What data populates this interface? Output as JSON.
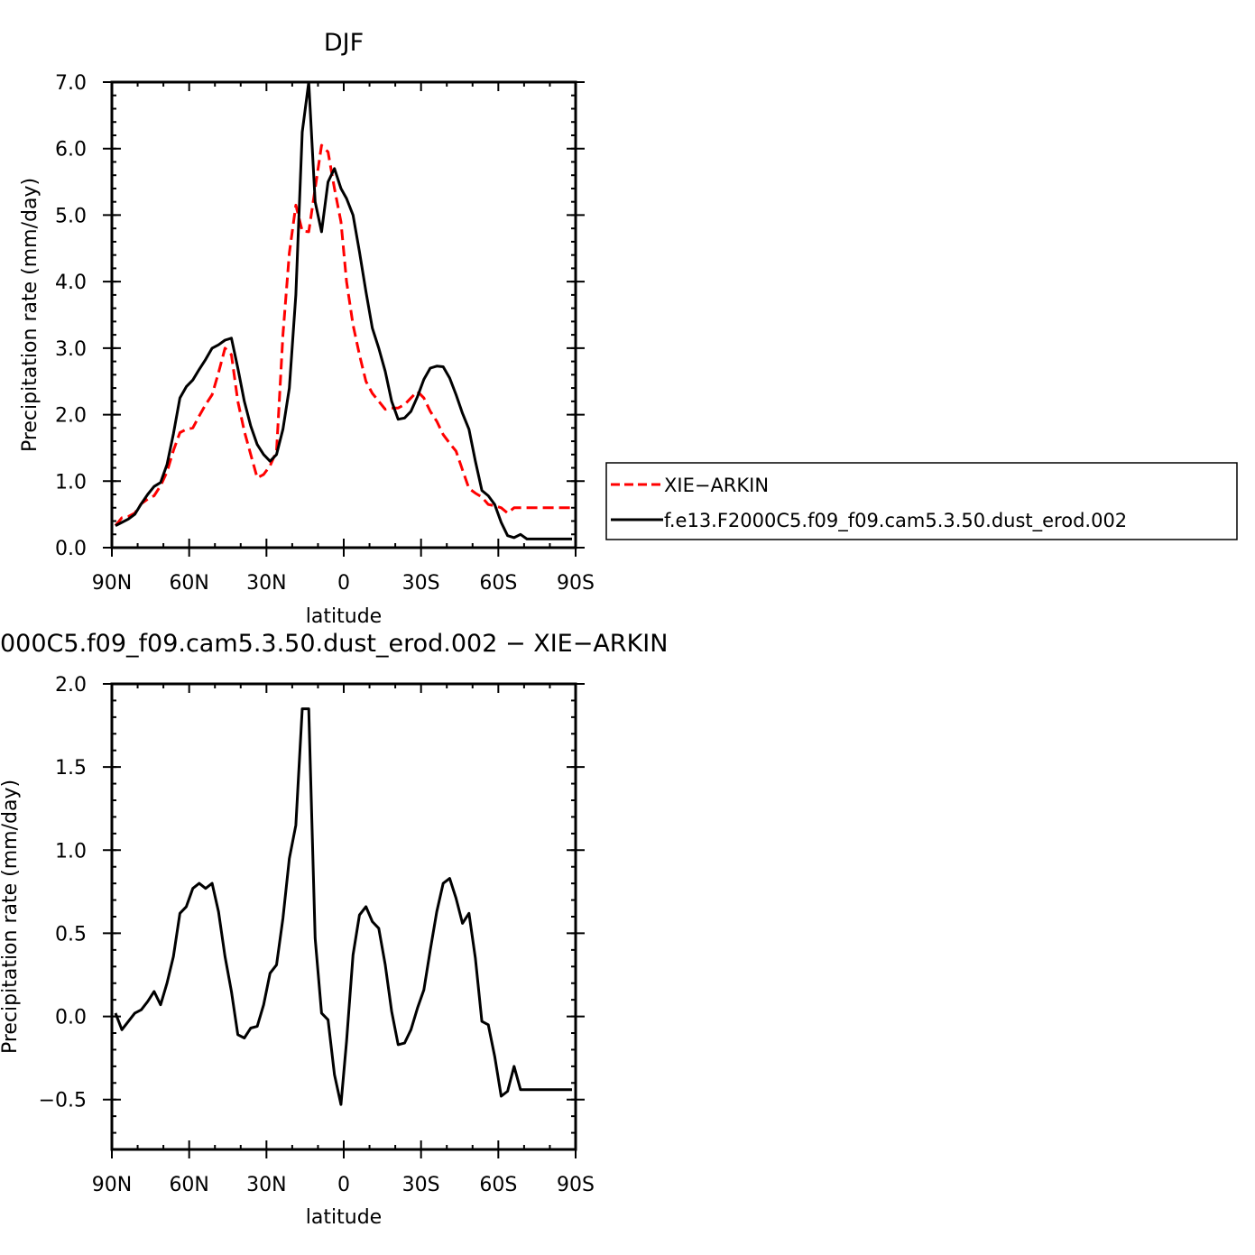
{
  "chart_data": [
    {
      "type": "line",
      "title": "DJF",
      "xlabel": "latitude",
      "ylabel": "Precipitation rate (mm/day)",
      "xticks": [
        "90N",
        "60N",
        "30N",
        "0",
        "30S",
        "60S",
        "90S"
      ],
      "yticks": [
        "0.0",
        "1.0",
        "2.0",
        "3.0",
        "4.0",
        "5.0",
        "6.0",
        "7.0"
      ],
      "xlim": [
        90,
        -90
      ],
      "ylim": [
        0,
        7
      ],
      "legend_position": "right",
      "series": [
        {
          "name": "XIE−ARKIN",
          "color": "#ff0000",
          "dash": "dashed",
          "x": [
            88.6,
            86.1,
            83.6,
            81.1,
            78.6,
            76.1,
            73.6,
            71.1,
            68.6,
            66.1,
            63.6,
            61.1,
            58.6,
            56.1,
            53.6,
            51.1,
            48.6,
            46.1,
            43.6,
            41.1,
            38.6,
            36.1,
            33.6,
            31.1,
            28.6,
            26.1,
            23.6,
            21.1,
            18.6,
            16.1,
            13.6,
            11.1,
            8.6,
            6.1,
            3.6,
            1.1,
            -1.1,
            -3.6,
            -6.1,
            -8.6,
            -11.1,
            -13.6,
            -16.1,
            -18.6,
            -21.1,
            -23.6,
            -26.1,
            -28.6,
            -31.1,
            -33.6,
            -36.1,
            -38.6,
            -41.1,
            -43.6,
            -46.1,
            -48.6,
            -51.1,
            -53.6,
            -56.1,
            -58.6,
            -61.1,
            -63.6,
            -66.1,
            -68.6,
            -71.1,
            -73.6,
            -76.1,
            -78.6,
            -81.1,
            -83.6,
            -86.1,
            -88.6
          ],
          "y": [
            0.33,
            0.45,
            0.47,
            0.52,
            0.66,
            0.73,
            0.78,
            0.93,
            1.14,
            1.46,
            1.73,
            1.78,
            1.8,
            1.98,
            2.15,
            2.3,
            2.63,
            3.0,
            2.9,
            2.2,
            1.75,
            1.4,
            1.05,
            1.1,
            1.23,
            1.45,
            3.2,
            4.43,
            5.15,
            4.76,
            4.75,
            5.4,
            6.05,
            5.95,
            5.4,
            4.9,
            4.0,
            3.35,
            2.9,
            2.5,
            2.32,
            2.2,
            2.08,
            2.1,
            2.1,
            2.15,
            2.25,
            2.35,
            2.25,
            2.05,
            1.9,
            1.7,
            1.57,
            1.45,
            1.17,
            0.89,
            0.82,
            0.76,
            0.65,
            0.63,
            0.6,
            0.52,
            0.6,
            0.6,
            0.6,
            0.6,
            0.6,
            0.6,
            0.6,
            0.6,
            0.6,
            0.6
          ]
        },
        {
          "name": "f.e13.F2000C5.f09_f09.cam5.3.50.dust_erod.002",
          "color": "#000000",
          "dash": "solid",
          "x": [
            88.6,
            86.1,
            83.6,
            81.1,
            78.6,
            76.1,
            73.6,
            71.1,
            68.6,
            66.1,
            63.6,
            61.1,
            58.6,
            56.1,
            53.6,
            51.1,
            48.6,
            46.1,
            43.6,
            41.1,
            38.6,
            36.1,
            33.6,
            31.1,
            28.6,
            26.1,
            23.6,
            21.1,
            18.6,
            16.1,
            13.6,
            11.1,
            8.6,
            6.1,
            3.6,
            1.1,
            -1.1,
            -3.6,
            -6.1,
            -8.6,
            -11.1,
            -13.6,
            -16.1,
            -18.6,
            -21.1,
            -23.6,
            -26.1,
            -28.6,
            -31.1,
            -33.6,
            -36.1,
            -38.6,
            -41.1,
            -43.6,
            -46.1,
            -48.6,
            -51.1,
            -53.6,
            -56.1,
            -58.6,
            -61.1,
            -63.6,
            -66.1,
            -68.6,
            -71.1,
            -73.6,
            -76.1,
            -78.6,
            -81.1,
            -83.6,
            -86.1,
            -88.6
          ],
          "y": [
            0.33,
            0.38,
            0.43,
            0.5,
            0.66,
            0.8,
            0.92,
            0.98,
            1.25,
            1.71,
            2.25,
            2.42,
            2.52,
            2.68,
            2.83,
            3.0,
            3.05,
            3.12,
            3.15,
            2.7,
            2.2,
            1.83,
            1.55,
            1.4,
            1.3,
            1.4,
            1.78,
            2.4,
            3.8,
            6.25,
            7.0,
            5.2,
            4.75,
            5.5,
            5.7,
            5.4,
            5.25,
            5.0,
            4.45,
            3.85,
            3.3,
            3.0,
            2.65,
            2.2,
            1.93,
            1.95,
            2.05,
            2.27,
            2.53,
            2.7,
            2.73,
            2.72,
            2.55,
            2.3,
            2.02,
            1.78,
            1.3,
            0.86,
            0.78,
            0.65,
            0.38,
            0.18,
            0.15,
            0.2,
            0.13,
            0.13,
            0.13,
            0.13,
            0.13,
            0.13,
            0.13,
            0.13
          ]
        }
      ]
    },
    {
      "type": "line",
      "title": "000C5.f09_f09.cam5.3.50.dust_erod.002 − XIE−ARKIN",
      "xlabel": "latitude",
      "ylabel": "Precipitation rate (mm/day)",
      "xticks": [
        "90N",
        "60N",
        "30N",
        "0",
        "30S",
        "60S",
        "90S"
      ],
      "yticks": [
        "−0.5",
        "0.0",
        "0.5",
        "1.0",
        "1.5",
        "2.0"
      ],
      "xlim": [
        90,
        -90
      ],
      "ylim": [
        -0.8,
        2.0
      ],
      "series": [
        {
          "color": "#000000",
          "dash": "solid",
          "x": [
            88.6,
            86.1,
            83.6,
            81.1,
            78.6,
            76.1,
            73.6,
            71.1,
            68.6,
            66.1,
            63.6,
            61.1,
            58.6,
            56.1,
            53.6,
            51.1,
            48.6,
            46.1,
            43.6,
            41.1,
            38.6,
            36.1,
            33.6,
            31.1,
            28.6,
            26.1,
            23.6,
            21.1,
            18.6,
            16.1,
            13.6,
            11.1,
            8.6,
            6.1,
            3.6,
            1.1,
            -1.1,
            -3.6,
            -6.1,
            -8.6,
            -11.1,
            -13.6,
            -16.1,
            -18.6,
            -21.1,
            -23.6,
            -26.1,
            -28.6,
            -31.1,
            -33.6,
            -36.1,
            -38.6,
            -41.1,
            -43.6,
            -46.1,
            -48.6,
            -51.1,
            -53.6,
            -56.1,
            -58.6,
            -61.1,
            -63.6,
            -66.1,
            -68.6,
            -71.1,
            -73.6,
            -76.1,
            -78.6,
            -81.1,
            -83.6,
            -86.1,
            -88.6
          ],
          "y": [
            0.02,
            -0.08,
            -0.03,
            0.02,
            0.04,
            0.09,
            0.15,
            0.07,
            0.2,
            0.36,
            0.62,
            0.66,
            0.77,
            0.8,
            0.77,
            0.8,
            0.63,
            0.36,
            0.15,
            -0.11,
            -0.13,
            -0.07,
            -0.06,
            0.07,
            0.26,
            0.31,
            0.59,
            0.95,
            1.15,
            1.85,
            1.85,
            0.47,
            0.02,
            -0.02,
            -0.35,
            -0.53,
            -0.15,
            0.37,
            0.61,
            0.66,
            0.57,
            0.53,
            0.31,
            0.03,
            -0.17,
            -0.16,
            -0.08,
            0.05,
            0.16,
            0.4,
            0.63,
            0.8,
            0.83,
            0.71,
            0.56,
            0.62,
            0.35,
            -0.03,
            -0.05,
            -0.24,
            -0.48,
            -0.45,
            -0.3,
            -0.44,
            -0.44,
            -0.44,
            -0.44,
            -0.44,
            -0.44,
            -0.44,
            -0.44,
            -0.44
          ]
        }
      ]
    }
  ]
}
